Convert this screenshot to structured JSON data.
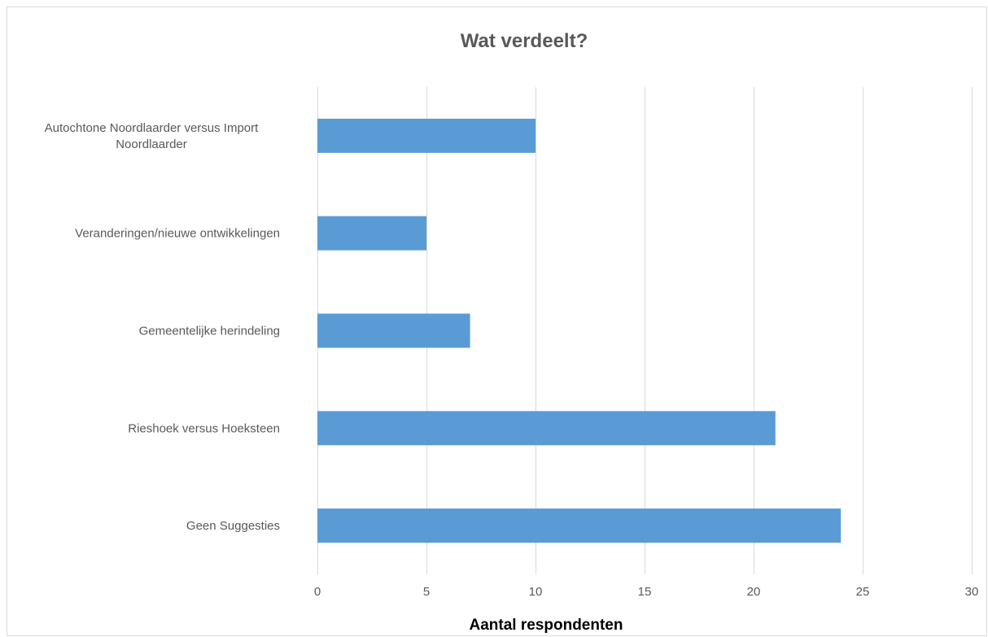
{
  "chart_data": {
    "type": "bar",
    "orientation": "horizontal",
    "title": "Wat verdeelt?",
    "xlabel": "Aantal respondenten",
    "ylabel": "",
    "categories": [
      [
        "Autochtone Noordlaarder versus Import",
        "Noordlaarder"
      ],
      [
        "Veranderingen/nieuwe ontwikkelingen"
      ],
      [
        "Gemeentelijke herindeling"
      ],
      [
        "Rieshoek versus Hoeksteen"
      ],
      [
        "Geen Suggesties"
      ]
    ],
    "values": [
      10,
      5,
      7,
      21,
      24
    ],
    "xlim": [
      0,
      30
    ],
    "xticks": [
      0,
      5,
      10,
      15,
      20,
      25,
      30
    ],
    "grid": true,
    "legend": "none",
    "colors": {
      "bar": "#5b9bd5",
      "grid": "#d9d9d9",
      "text": "#595959",
      "axis_title": "#000000"
    }
  }
}
